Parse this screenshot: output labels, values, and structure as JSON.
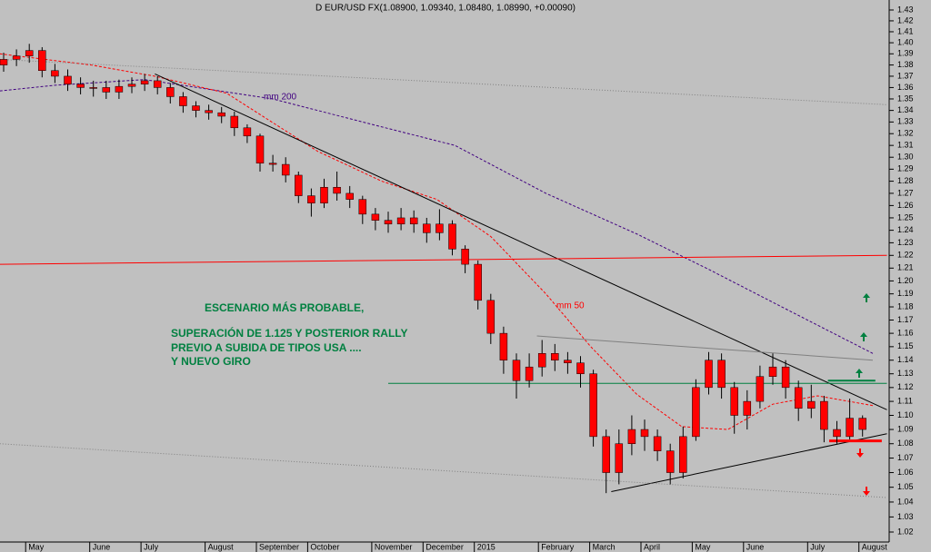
{
  "chart_data": {
    "type": "candlestick",
    "title": "D EUR/USD FX(1.08900, 1.09340, 1.08480, 1.08990, +0.00090)",
    "categories": [
      null,
      null,
      "May",
      null,
      null,
      null,
      null,
      "June",
      null,
      null,
      null,
      "July",
      null,
      null,
      null,
      null,
      "August",
      null,
      null,
      null,
      "September",
      null,
      null,
      null,
      "October",
      null,
      null,
      null,
      null,
      "November",
      null,
      null,
      null,
      "December",
      null,
      null,
      null,
      "2015",
      null,
      null,
      null,
      null,
      "February",
      null,
      null,
      null,
      "March",
      null,
      null,
      null,
      "April",
      null,
      null,
      null,
      "May",
      null,
      null,
      null,
      "June",
      null,
      null,
      null,
      null,
      "July",
      null,
      null,
      null,
      "August"
    ],
    "open": [
      1.38,
      1.385,
      1.388,
      1.393,
      1.375,
      1.37,
      1.363,
      1.36,
      1.36,
      1.356,
      1.361,
      1.363,
      1.366,
      1.36,
      1.352,
      1.344,
      1.34,
      1.338,
      1.335,
      1.325,
      1.318,
      1.295,
      1.294,
      1.285,
      1.268,
      1.262,
      1.275,
      1.27,
      1.265,
      1.253,
      1.248,
      1.245,
      1.25,
      1.245,
      1.238,
      1.245,
      1.225,
      1.213,
      1.185,
      1.16,
      1.14,
      1.125,
      1.135,
      1.145,
      1.14,
      1.138,
      1.13,
      1.085,
      1.06,
      1.08,
      1.09,
      1.085,
      1.075,
      1.06,
      1.085,
      1.12,
      1.14,
      1.12,
      1.1,
      1.11,
      1.128,
      1.135,
      1.12,
      1.105,
      1.11,
      1.09,
      1.085,
      1.098
    ],
    "high": [
      1.391,
      1.394,
      1.399,
      1.396,
      1.381,
      1.376,
      1.369,
      1.366,
      1.366,
      1.367,
      1.369,
      1.372,
      1.37,
      1.364,
      1.356,
      1.348,
      1.345,
      1.343,
      1.339,
      1.328,
      1.32,
      1.302,
      1.3,
      1.288,
      1.274,
      1.282,
      1.288,
      1.276,
      1.268,
      1.258,
      1.255,
      1.258,
      1.256,
      1.25,
      1.257,
      1.248,
      1.228,
      1.216,
      1.19,
      1.165,
      1.145,
      1.145,
      1.155,
      1.152,
      1.146,
      1.143,
      1.133,
      1.09,
      1.09,
      1.1,
      1.097,
      1.09,
      1.08,
      1.092,
      1.126,
      1.146,
      1.145,
      1.124,
      1.118,
      1.136,
      1.145,
      1.14,
      1.125,
      1.122,
      1.114,
      1.096,
      1.112,
      1.1
    ],
    "low": [
      1.374,
      1.379,
      1.382,
      1.369,
      1.364,
      1.357,
      1.354,
      1.352,
      1.35,
      1.35,
      1.355,
      1.357,
      1.354,
      1.346,
      1.338,
      1.334,
      1.332,
      1.329,
      1.318,
      1.312,
      1.288,
      1.288,
      1.279,
      1.262,
      1.251,
      1.258,
      1.264,
      1.258,
      1.245,
      1.24,
      1.238,
      1.24,
      1.238,
      1.23,
      1.232,
      1.22,
      1.206,
      1.178,
      1.152,
      1.13,
      1.112,
      1.12,
      1.128,
      1.132,
      1.13,
      1.12,
      1.078,
      1.046,
      1.052,
      1.072,
      1.075,
      1.068,
      1.052,
      1.056,
      1.082,
      1.115,
      1.112,
      1.087,
      1.09,
      1.105,
      1.122,
      1.112,
      1.096,
      1.098,
      1.081,
      1.08,
      1.083,
      1.085
    ],
    "close": [
      1.385,
      1.388,
      1.393,
      1.375,
      1.37,
      1.363,
      1.36,
      1.36,
      1.356,
      1.361,
      1.363,
      1.366,
      1.36,
      1.352,
      1.344,
      1.34,
      1.338,
      1.335,
      1.325,
      1.318,
      1.295,
      1.294,
      1.285,
      1.268,
      1.262,
      1.275,
      1.27,
      1.265,
      1.253,
      1.248,
      1.245,
      1.25,
      1.245,
      1.238,
      1.245,
      1.225,
      1.213,
      1.185,
      1.16,
      1.14,
      1.125,
      1.135,
      1.145,
      1.14,
      1.138,
      1.13,
      1.085,
      1.06,
      1.08,
      1.09,
      1.085,
      1.075,
      1.06,
      1.085,
      1.12,
      1.14,
      1.12,
      1.1,
      1.11,
      1.128,
      1.135,
      1.12,
      1.105,
      1.11,
      1.09,
      1.085,
      1.098,
      1.09
    ],
    "color": "#ff0000",
    "wick_color": "#000000",
    "ylim": [
      1.02,
      1.43
    ],
    "log_scale": true,
    "grid": false,
    "yticks": [
      1.02,
      1.03,
      1.04,
      1.05,
      1.06,
      1.07,
      1.08,
      1.09,
      {
        "value": 1.1,
        "label": "1.10"
      },
      1.11,
      1.12,
      1.13,
      1.14,
      1.15,
      1.16,
      1.17,
      1.18,
      1.19,
      {
        "value": 1.2,
        "label": "1.20"
      },
      1.21,
      1.22,
      1.23,
      1.24,
      1.25,
      1.26,
      1.27,
      1.28,
      1.29,
      {
        "value": 1.3,
        "label": "1.30"
      },
      1.31,
      1.32,
      1.33,
      1.34,
      1.35,
      1.36,
      1.37,
      1.38,
      1.39,
      {
        "value": 1.4,
        "label": "1.40"
      },
      1.41,
      1.42,
      1.43
    ],
    "overlays": [
      {
        "label": "mm 200",
        "color": "#400080",
        "dash": "3,2",
        "width": 1,
        "x": [
          -0.3,
          4,
          11,
          21,
          28,
          35.2,
          42.3,
          49.4,
          55,
          60.7,
          67.8
        ],
        "y": [
          1.357,
          1.362,
          1.367,
          1.35,
          1.33,
          1.31,
          1.27,
          1.237,
          1.209,
          1.18,
          1.145
        ]
      },
      {
        "label": "mm 50",
        "color": "#ff0000",
        "dash": "3,2",
        "width": 1,
        "x": [
          -0.3,
          6.8,
          11.8,
          17.4,
          24.5,
          29.5,
          33.8,
          38,
          42.3,
          45.8,
          49.4,
          52.9,
          56.5,
          60,
          63.5,
          67.8
        ],
        "y": [
          1.39,
          1.38,
          1.37,
          1.355,
          1.305,
          1.28,
          1.265,
          1.235,
          1.19,
          1.15,
          1.115,
          1.092,
          1.09,
          1.108,
          1.114,
          1.107
        ]
      },
      {
        "color": "#000000",
        "width": 1,
        "x": [
          11.8,
          68.9
        ],
        "y": [
          1.372,
          1.104
        ]
      },
      {
        "color": "#000000",
        "width": 1,
        "x": [
          47.4,
          68.9
        ],
        "y": [
          1.047,
          1.087
        ]
      },
      {
        "color": "#808080",
        "dash": "1,2",
        "width": 1,
        "x": [
          -0.3,
          68.9
        ],
        "y": [
          1.385,
          1.345
        ]
      },
      {
        "color": "#808080",
        "dash": "1,2",
        "width": 1,
        "x": [
          -0.3,
          68.9
        ],
        "y": [
          1.08,
          1.043
        ]
      },
      {
        "color": "#808080",
        "width": 1,
        "x": [
          41.6,
          67.8
        ],
        "y": [
          1.158,
          1.14
        ]
      },
      {
        "color": "#008040",
        "width": 1,
        "x": [
          30,
          68.9
        ],
        "y": [
          1.123,
          1.123
        ]
      },
      {
        "color": "#ff0000",
        "width": 1,
        "x": [
          -0.3,
          68.9
        ],
        "y": [
          1.213,
          1.22
        ]
      },
      {
        "color": "#008040",
        "width": 2,
        "x": [
          64.3,
          68
        ],
        "y": [
          1.125,
          1.125
        ]
      },
      {
        "color": "#ff0000",
        "width": 3,
        "x": [
          64.4,
          68.5
        ],
        "y": [
          1.082,
          1.082
        ]
      }
    ],
    "annotations": [
      "ESCENARIO MÁS PROBABLE,",
      "SUPERACIÓN DE 1.125 Y POSTERIOR RALLY",
      "PREVIO A SUBIDA DE TIPOS USA ....",
      "Y NUEVO GIRO"
    ]
  }
}
